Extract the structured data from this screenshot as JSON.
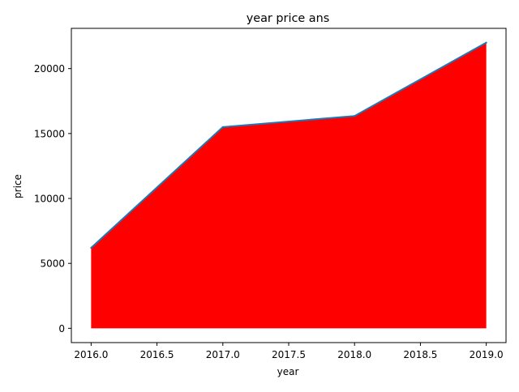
{
  "chart_data": {
    "type": "area",
    "title": "year price ans",
    "xlabel": "year",
    "ylabel": "price",
    "x": [
      2016,
      2017,
      2018,
      2019
    ],
    "y": [
      6200,
      15500,
      16350,
      22000
    ],
    "xlim": [
      2015.85,
      2019.15
    ],
    "ylim": [
      -1100,
      23100
    ],
    "xticks": [
      2016.0,
      2016.5,
      2017.0,
      2017.5,
      2018.0,
      2018.5,
      2019.0
    ],
    "xtick_labels": [
      "2016.0",
      "2016.5",
      "2017.0",
      "2017.5",
      "2018.0",
      "2018.5",
      "2019.0"
    ],
    "yticks": [
      0,
      5000,
      10000,
      15000,
      20000
    ],
    "ytick_labels": [
      "0",
      "5000",
      "10000",
      "15000",
      "20000"
    ],
    "fill_color": "#ff0000",
    "line_color": "#1f77b4",
    "grid": false,
    "legend": "none"
  }
}
